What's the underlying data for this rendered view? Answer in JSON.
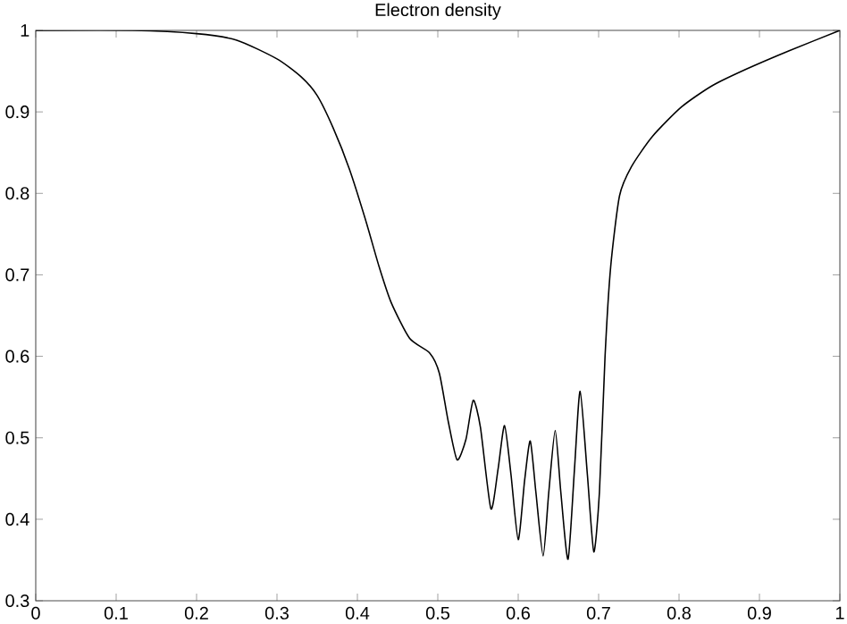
{
  "chart_data": {
    "type": "line",
    "title": "Electron density",
    "x": [
      0,
      0.12,
      0.2,
      0.25,
      0.3,
      0.33,
      0.35,
      0.37,
      0.39,
      0.41,
      0.427,
      0.442,
      0.465,
      0.49,
      0.502,
      0.513,
      0.524,
      0.535,
      0.544,
      0.553,
      0.566,
      0.575,
      0.583,
      0.591,
      0.6,
      0.608,
      0.615,
      0.622,
      0.631,
      0.638,
      0.646,
      0.653,
      0.662,
      0.67,
      0.677,
      0.686,
      0.694,
      0.701,
      0.708,
      0.715,
      0.726,
      0.741,
      0.767,
      0.803,
      0.841,
      0.885,
      0.937,
      1.0
    ],
    "series": [
      {
        "color": "#000000",
        "values": [
          1.0,
          1.0,
          0.996,
          0.988,
          0.965,
          0.943,
          0.92,
          0.88,
          0.83,
          0.768,
          0.71,
          0.666,
          0.622,
          0.604,
          0.579,
          0.52,
          0.473,
          0.498,
          0.546,
          0.513,
          0.413,
          0.462,
          0.515,
          0.455,
          0.375,
          0.448,
          0.496,
          0.433,
          0.355,
          0.433,
          0.509,
          0.433,
          0.351,
          0.462,
          0.557,
          0.455,
          0.36,
          0.433,
          0.6,
          0.71,
          0.797,
          0.833,
          0.87,
          0.906,
          0.932,
          0.953,
          0.975,
          1.0
        ]
      }
    ],
    "xlim": [
      0,
      1
    ],
    "ylim": [
      0.3,
      1
    ],
    "xticks": [
      0,
      0.1,
      0.2,
      0.3,
      0.4,
      0.5,
      0.6,
      0.7,
      0.8,
      0.9,
      1
    ],
    "yticks": [
      0.3,
      0.4,
      0.5,
      0.6,
      0.7,
      0.8,
      0.9,
      1
    ]
  }
}
